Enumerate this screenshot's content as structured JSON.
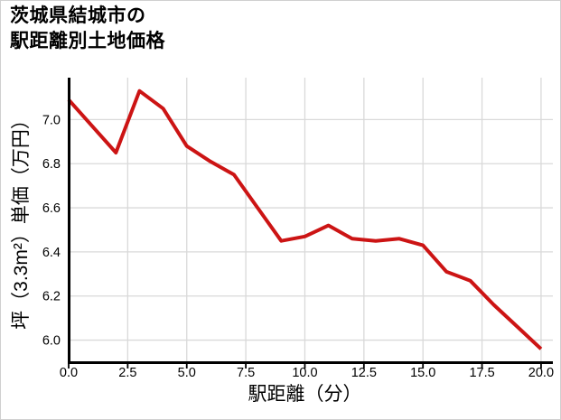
{
  "title": {
    "line1": "茨城県結城市の",
    "line2": "駅距離別土地価格"
  },
  "chart_data": {
    "type": "line",
    "title": "茨城県結城市の駅距離別土地価格",
    "xlabel": "駅距離（分）",
    "ylabel": "坪（3.3m²）単価（万円）",
    "x": [
      0,
      1,
      2,
      3,
      4,
      5,
      6,
      7,
      8,
      9,
      10,
      11,
      12,
      13,
      14,
      15,
      16,
      17,
      18,
      19,
      20
    ],
    "values": [
      7.09,
      6.97,
      6.85,
      7.13,
      7.05,
      6.88,
      6.81,
      6.75,
      6.6,
      6.45,
      6.47,
      6.52,
      6.46,
      6.45,
      6.46,
      6.43,
      6.31,
      6.27,
      6.16,
      6.06,
      5.96
    ],
    "xlim": [
      0,
      20.5
    ],
    "ylim": [
      5.9,
      7.19
    ],
    "xticks": [
      0,
      2.5,
      5,
      7.5,
      10,
      12.5,
      15,
      17.5,
      20
    ],
    "xtick_labels": [
      "0.0",
      "2.5",
      "5.0",
      "7.5",
      "10.0",
      "12.5",
      "15.0",
      "17.5",
      "20.0"
    ],
    "yticks": [
      6.0,
      6.2,
      6.4,
      6.6,
      6.8,
      7.0
    ],
    "ytick_labels": [
      "6.0",
      "6.2",
      "6.4",
      "6.6",
      "6.8",
      "7.0"
    ],
    "grid": true,
    "legend": "none",
    "colors": {
      "line": "#cc1414",
      "grid": "#d9d9d9",
      "axis": "#000000",
      "text": "#000000",
      "background": "#ffffff"
    }
  }
}
